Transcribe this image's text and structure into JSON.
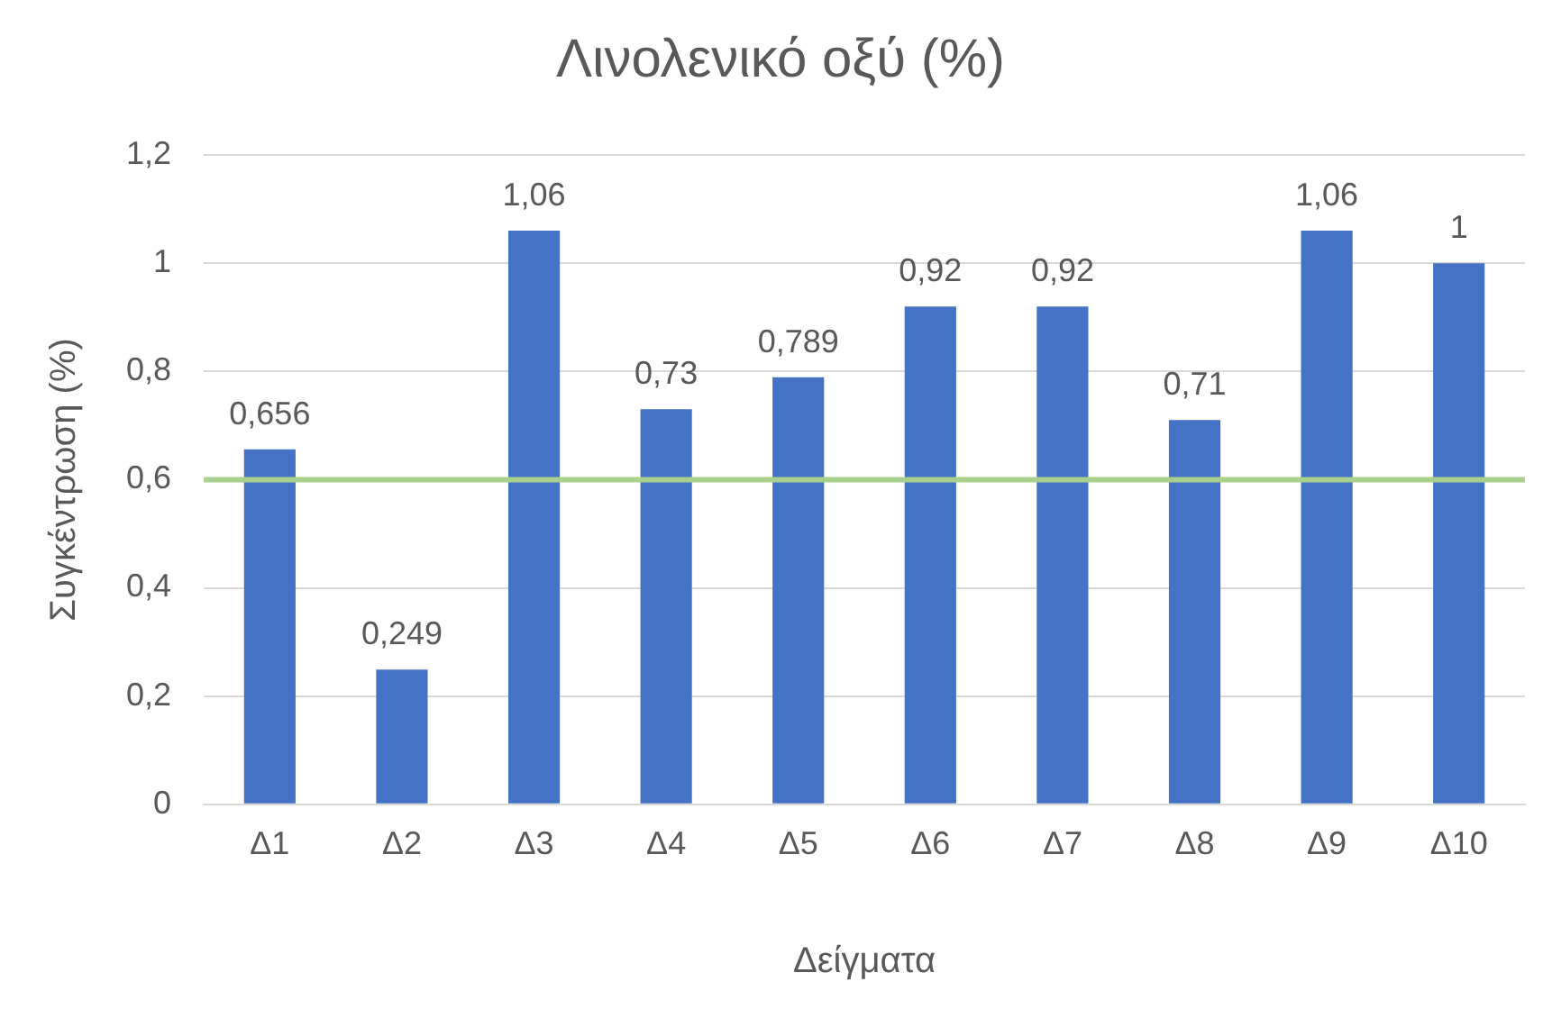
{
  "chart_data": {
    "type": "bar",
    "title": "Λινολενικό οξύ (%)",
    "xlabel": "Δείγματα",
    "ylabel": "Συγκέντρωση (%)",
    "categories": [
      "Δ1",
      "Δ2",
      "Δ3",
      "Δ4",
      "Δ5",
      "Δ6",
      "Δ7",
      "Δ8",
      "Δ9",
      "Δ10"
    ],
    "values": [
      0.656,
      0.249,
      1.06,
      0.73,
      0.789,
      0.92,
      0.92,
      0.71,
      1.06,
      1
    ],
    "value_labels": [
      "0,656",
      "0,249",
      "1,06",
      "0,73",
      "0,789",
      "0,92",
      "0,92",
      "0,71",
      "1,06",
      "1"
    ],
    "color": "#4472c4",
    "ylim": [
      0,
      1.2
    ],
    "yticks": [
      0,
      {
        "value": 0.2,
        "label": "0,2"
      },
      {
        "value": 0.4,
        "label": "0,4"
      },
      {
        "value": 0.6,
        "label": "0,6"
      },
      {
        "value": 0.8,
        "label": "0,8"
      },
      1,
      {
        "value": 1.2,
        "label": "1,2"
      }
    ],
    "grid": "y",
    "legend": false,
    "ref_lines": [
      {
        "axis": "y",
        "value": 0.6,
        "color": "#a9d18e"
      }
    ]
  }
}
